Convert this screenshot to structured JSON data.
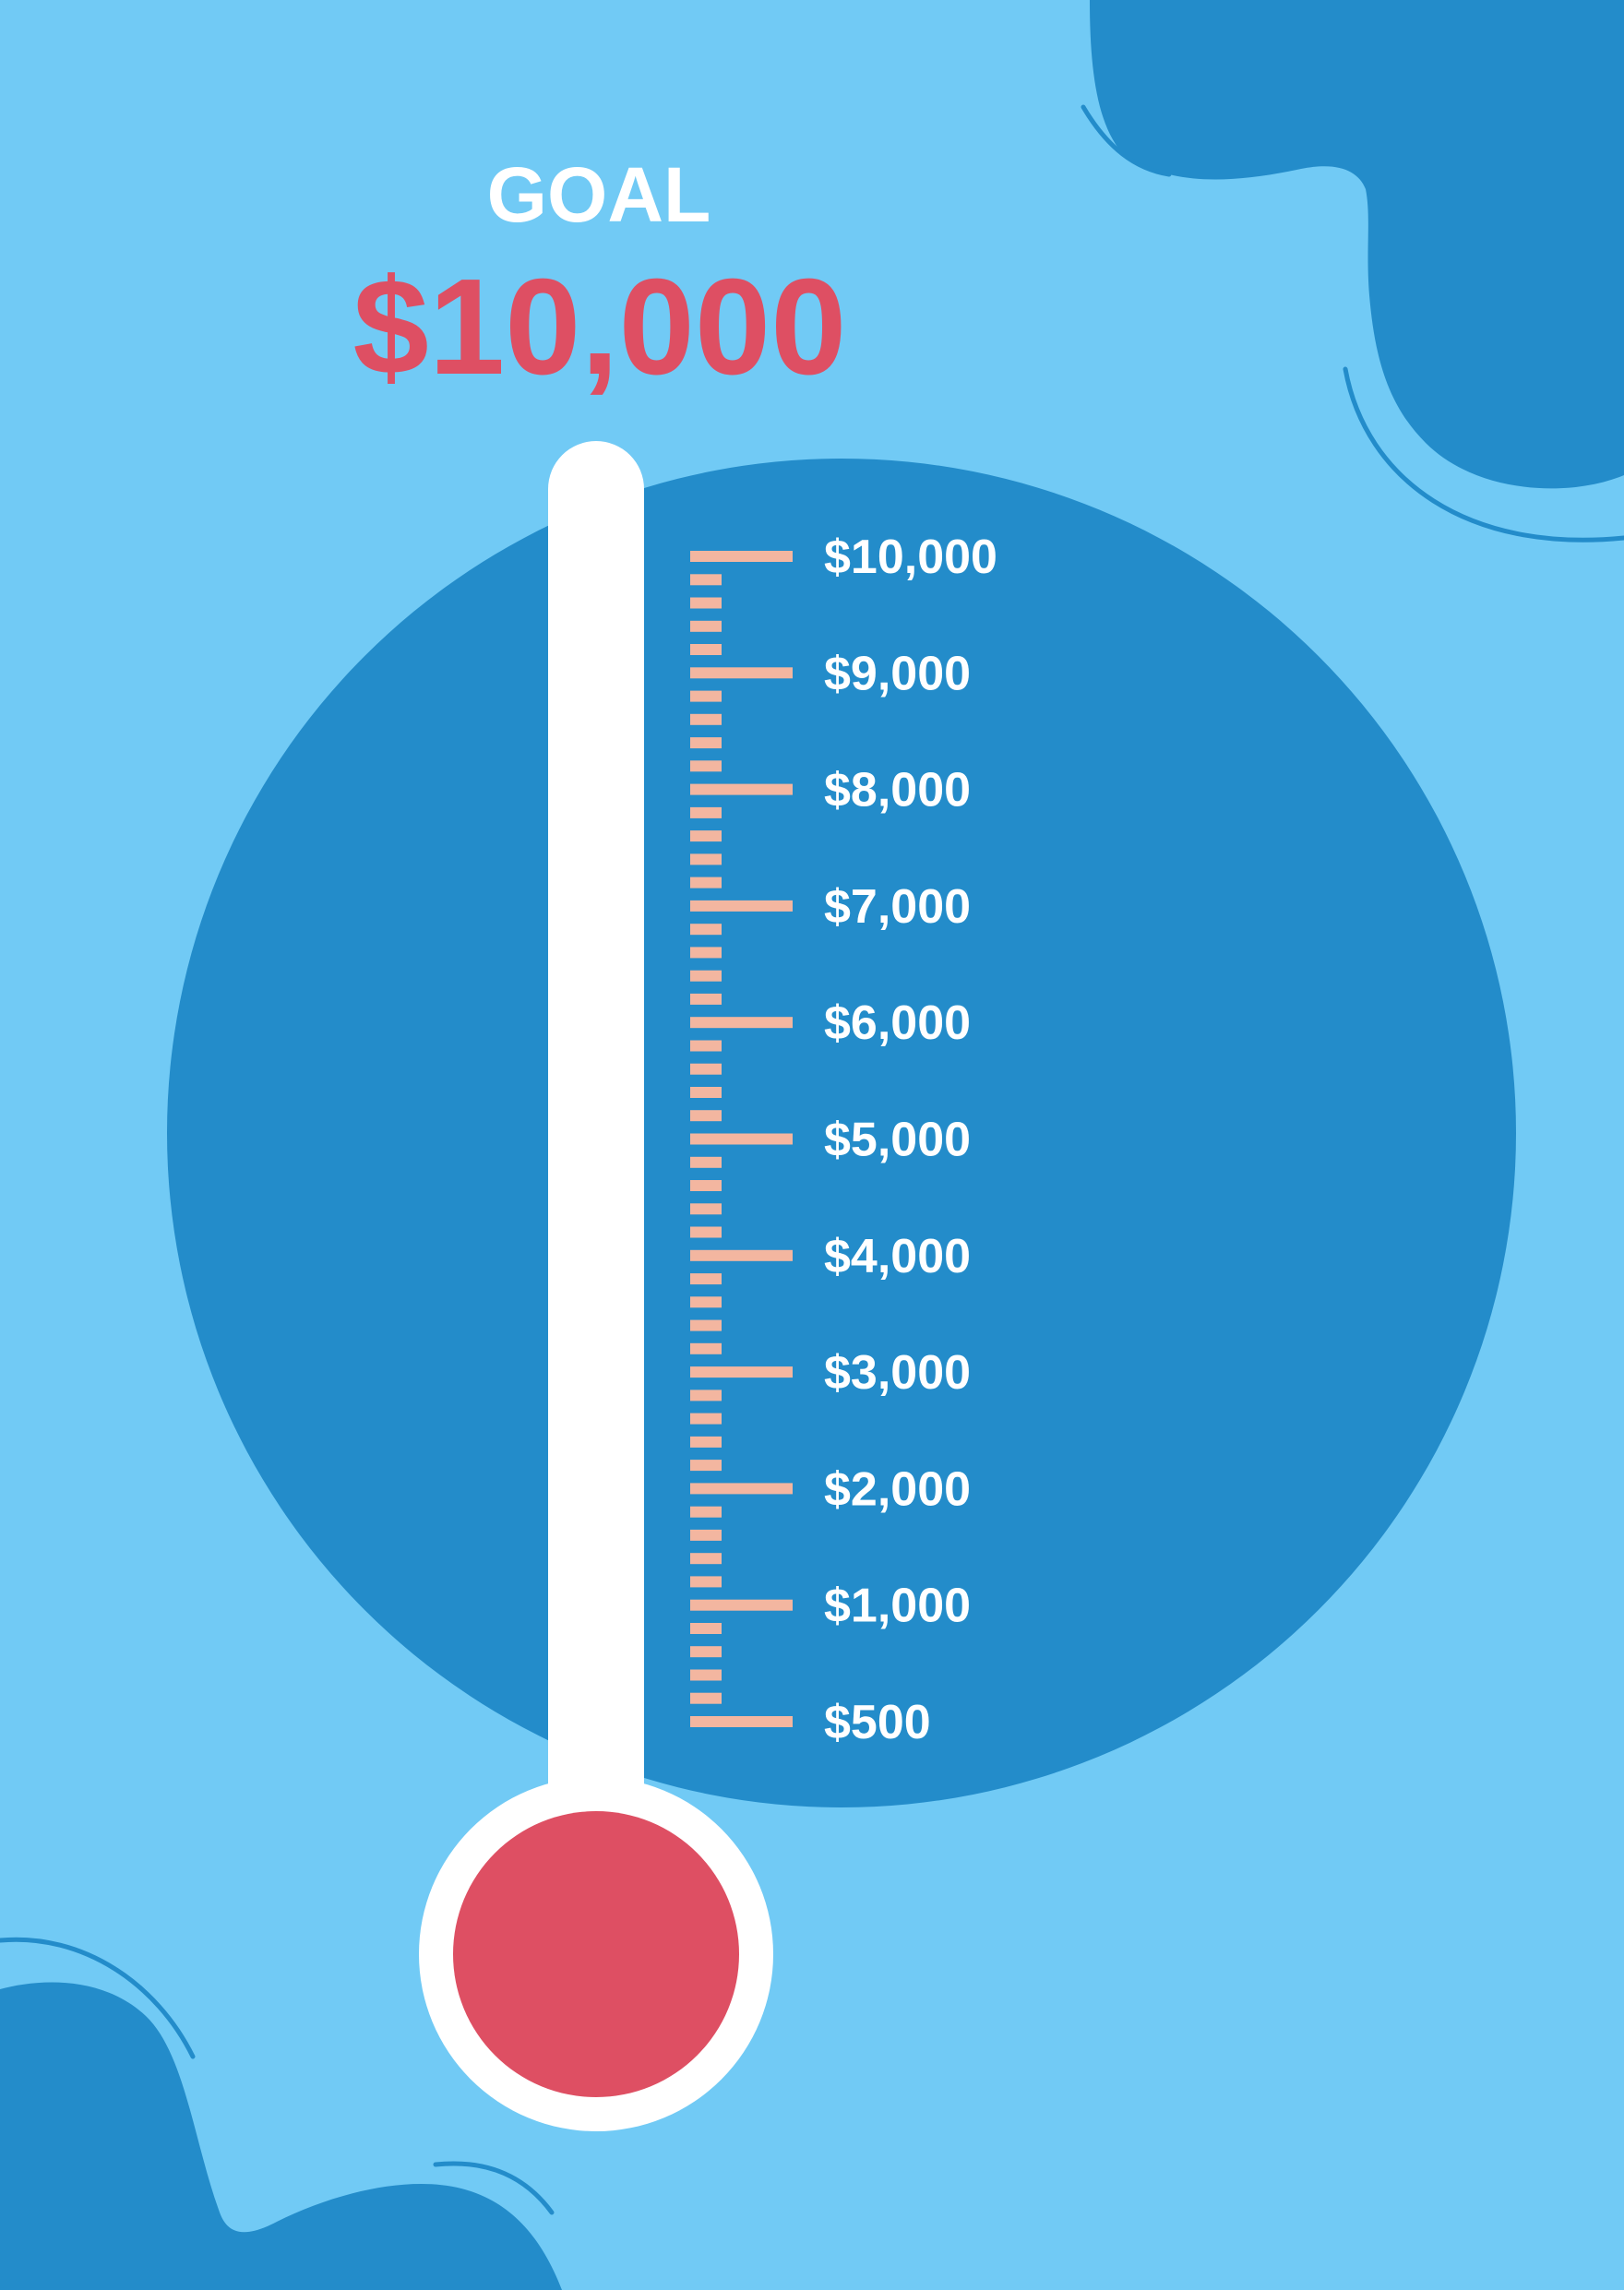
{
  "header": {
    "goal_label": "GOAL",
    "goal_amount": "$10,000"
  },
  "chart_data": {
    "type": "thermometer",
    "goal": 10000,
    "current_fill": 0,
    "tick_labels": [
      "$10,000",
      "$9,000",
      "$8,000",
      "$7,000",
      "$6,000",
      "$5,000",
      "$4,000",
      "$3,000",
      "$2,000",
      "$1,000",
      "$500"
    ],
    "minor_ticks_between_labels": 4
  },
  "colors": {
    "background": "#71caf5",
    "circle": "#238cca",
    "accent_red": "#de4f63",
    "tick": "#f3b6a0",
    "label": "#ffffff",
    "tube": "#ffffff"
  }
}
